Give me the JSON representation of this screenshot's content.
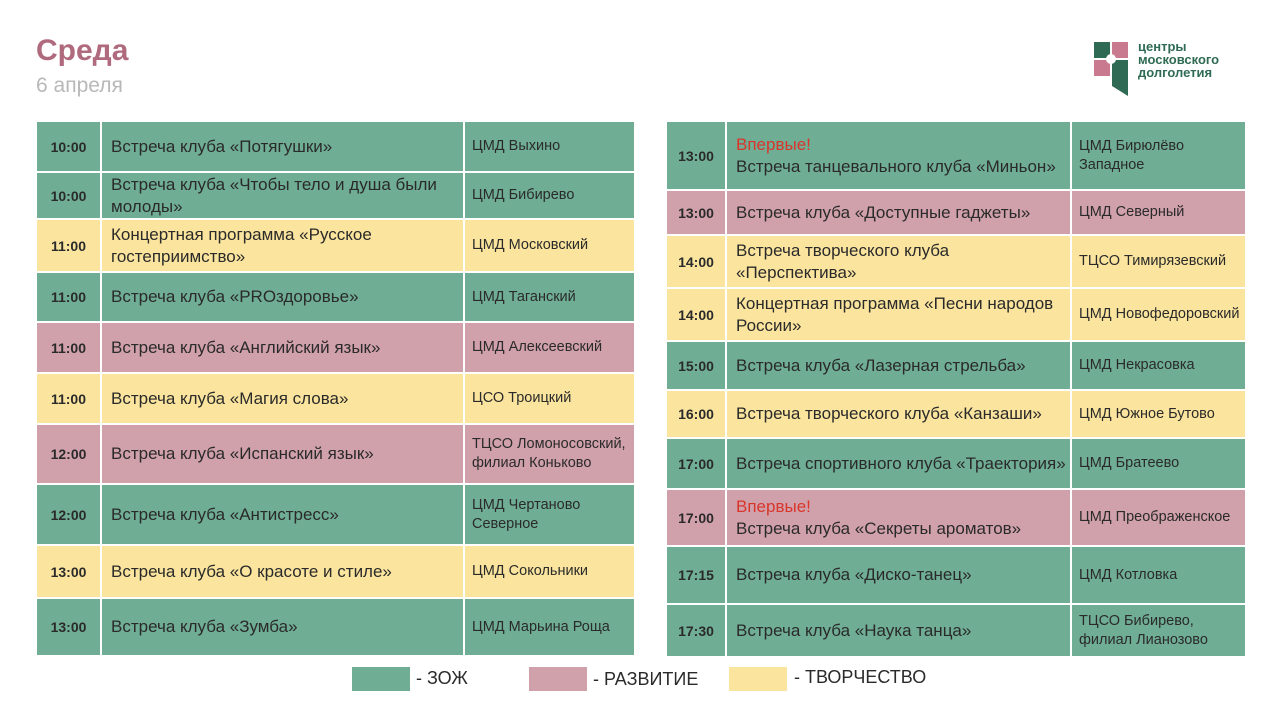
{
  "header": {
    "title": "Среда",
    "subtitle": "6 апреля"
  },
  "logo": {
    "line1": "центры",
    "line2": "московского",
    "line3": "долголетия"
  },
  "colors": {
    "zozh": "#6fae95",
    "razv": "#d1a1ab",
    "tvor": "#fbe59e",
    "new": "#d9352b"
  },
  "left_table": [
    {
      "time": "10:00",
      "event": "Встреча клуба «Потягушки»",
      "place": "ЦМД Выхино",
      "category": "zozh"
    },
    {
      "time": "10:00",
      "event": "Встреча клуба «Чтобы тело и душа были молоды»",
      "place": "ЦМД Бибирево",
      "category": "zozh"
    },
    {
      "time": "11:00",
      "event": "Концертная программа «Русское гостеприимство»",
      "place": "ЦМД Московский",
      "category": "tvor"
    },
    {
      "time": "11:00",
      "event": "Встреча клуба «PROздоровье»",
      "place": "ЦМД Таганский",
      "category": "zozh"
    },
    {
      "time": "11:00",
      "event": "Встреча клуба «Английский язык»",
      "place": "ЦМД Алексеевский",
      "category": "razv"
    },
    {
      "time": "11:00",
      "event": "Встреча клуба «Магия слова»",
      "place": "ЦСО Троицкий",
      "category": "tvor"
    },
    {
      "time": "12:00",
      "event": "Встреча клуба «Испанский язык»",
      "place": "ТЦСО Ломоносовский, филиал Коньково",
      "category": "razv"
    },
    {
      "time": "12:00",
      "event": "Встреча клуба «Антистресс»",
      "place": "ЦМД Чертаново Северное",
      "category": "zozh"
    },
    {
      "time": "13:00",
      "event": "Встреча клуба «О красоте и стиле»",
      "place": "ЦМД Сокольники",
      "category": "tvor"
    },
    {
      "time": "13:00",
      "event": "Встреча клуба «Зумба»",
      "place": "ЦМД Марьина Роща",
      "category": "zozh"
    }
  ],
  "right_table": [
    {
      "time": "13:00",
      "new_label": "Впервые!",
      "event": "Встреча танцевального клуба «Миньон»",
      "place": "ЦМД Бирюлёво Западное",
      "category": "zozh"
    },
    {
      "time": "13:00",
      "new_label": "",
      "event": "Встреча клуба «Доступные гаджеты»",
      "place": "ЦМД Северный",
      "category": "razv"
    },
    {
      "time": "14:00",
      "new_label": "",
      "event": "Встреча творческого клуба «Перспектива»",
      "place": "ТЦСО Тимирязевский",
      "category": "tvor"
    },
    {
      "time": "14:00",
      "new_label": "",
      "event": "Концертная программа «Песни народов России»",
      "place": "ЦМД Новофедоровский",
      "category": "tvor"
    },
    {
      "time": "15:00",
      "new_label": "",
      "event": "Встреча клуба «Лазерная стрельба»",
      "place": "ЦМД Некрасовка",
      "category": "zozh"
    },
    {
      "time": "16:00",
      "new_label": "",
      "event": "Встреча творческого клуба «Канзаши»",
      "place": "ЦМД Южное Бутово",
      "category": "tvor"
    },
    {
      "time": "17:00",
      "new_label": "",
      "event": "Встреча спортивного клуба «Траектория»",
      "place": "ЦМД Братеево",
      "category": "zozh"
    },
    {
      "time": "17:00",
      "new_label": "Впервые!",
      "event": "Встреча клуба «Секреты ароматов»",
      "place": "ЦМД Преображенское",
      "category": "razv"
    },
    {
      "time": "17:15",
      "new_label": "",
      "event": "Встреча клуба «Диско-танец»",
      "place": "ЦМД Котловка",
      "category": "zozh"
    },
    {
      "time": "17:30",
      "new_label": "",
      "event": "Встреча клуба «Наука танца»",
      "place": "ТЦСО Бибирево, филиал Лианозово",
      "category": "zozh"
    }
  ],
  "legend": {
    "zozh": "- ЗОЖ",
    "razv": "- РАЗВИТИЕ",
    "tvor": "- ТВОРЧЕСТВО"
  }
}
